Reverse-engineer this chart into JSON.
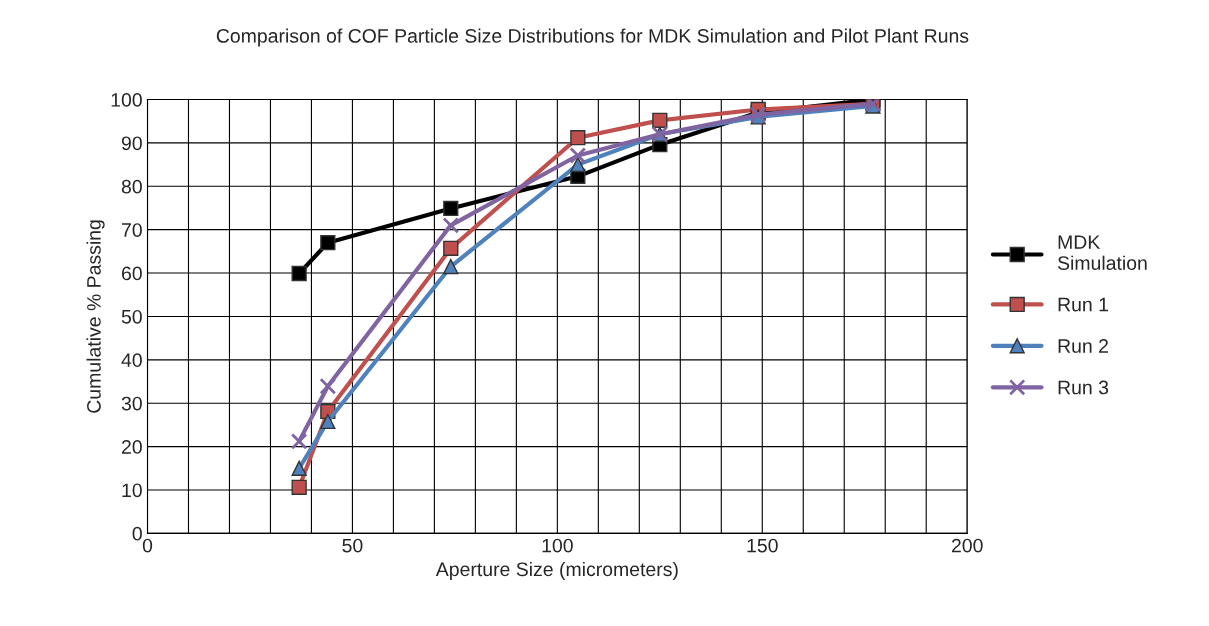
{
  "chart_data": {
    "type": "line",
    "title": "Comparison of COF Particle Size Distributions for MDK Simulation and Pilot Plant Runs",
    "xlabel": "Aperture Size (micrometers)",
    "ylabel": "Cumulative % Passing",
    "x": [
      37,
      44,
      74,
      105,
      125,
      149,
      177
    ],
    "series": [
      {
        "name": "MDK Simulation",
        "color": "#000000",
        "marker": "square",
        "values": [
          59.9,
          67.0,
          74.9,
          82.3,
          89.6,
          97,
          100
        ]
      },
      {
        "name": "Run 1",
        "color": "#c0504d",
        "marker": "square",
        "values": [
          10.6,
          28.1,
          65.7,
          91.2,
          95.2,
          97.7,
          99
        ]
      },
      {
        "name": "Run 2",
        "color": "#4f81bd",
        "marker": "triangle",
        "values": [
          15,
          25.8,
          61.5,
          85,
          92,
          96,
          98.5
        ]
      },
      {
        "name": "Run 3",
        "color": "#8064a2",
        "marker": "cross",
        "values": [
          21.2,
          33.9,
          71,
          87.1,
          92,
          96.5,
          99
        ]
      }
    ],
    "xlim": [
      0,
      200
    ],
    "xticks": [
      0,
      {
        "value": 10,
        "label": null
      },
      {
        "value": 20,
        "label": null
      },
      {
        "value": 30,
        "label": null
      },
      {
        "value": 40,
        "label": null
      },
      50,
      {
        "value": 60,
        "label": null
      },
      {
        "value": 70,
        "label": null
      },
      {
        "value": 80,
        "label": null
      },
      {
        "value": 90,
        "label": null
      },
      100,
      {
        "value": 110,
        "label": null
      },
      {
        "value": 120,
        "label": null
      },
      {
        "value": 130,
        "label": null
      },
      {
        "value": 140,
        "label": null
      },
      150,
      {
        "value": 160,
        "label": null
      },
      {
        "value": 170,
        "label": null
      },
      {
        "value": 180,
        "label": null
      },
      {
        "value": 190,
        "label": null
      },
      200
    ],
    "ylim": [
      0,
      100
    ],
    "yticks": [
      0,
      10,
      20,
      30,
      40,
      50,
      60,
      70,
      80,
      90,
      100
    ],
    "grid": true,
    "legend": "right",
    "line_style": "solid"
  }
}
